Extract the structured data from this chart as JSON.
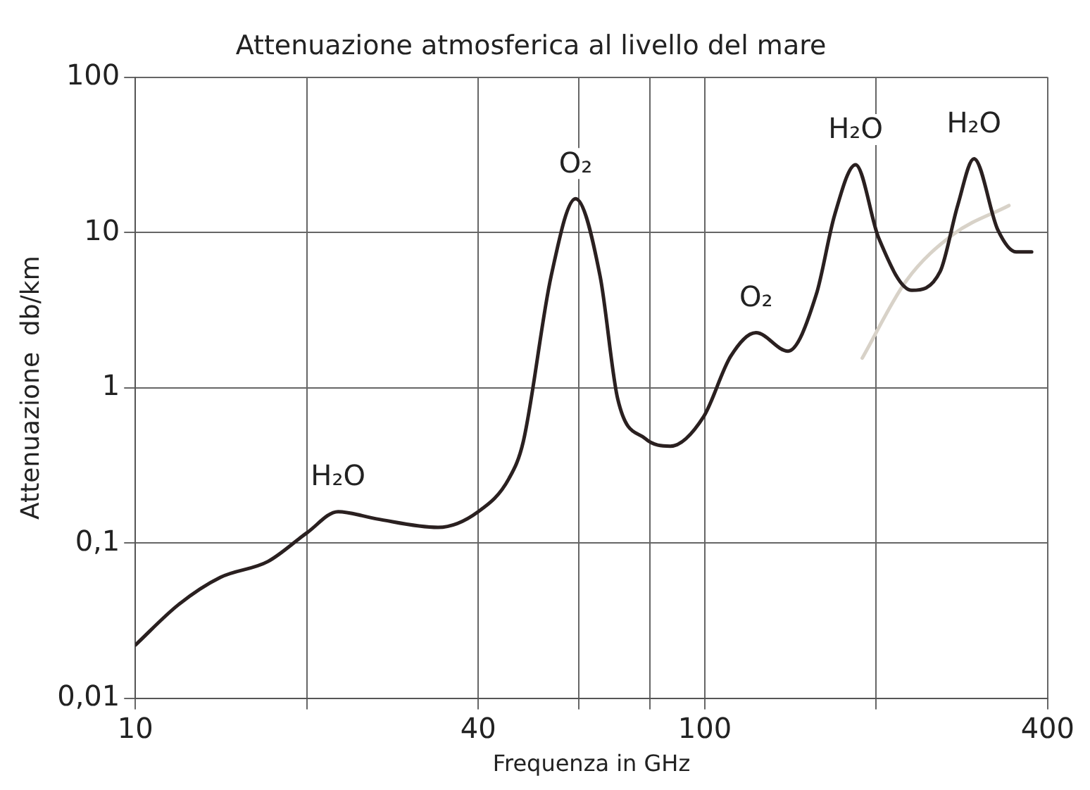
{
  "chart_data": {
    "type": "line",
    "title": "Attenuazione atmosferica al livello del mare",
    "xlabel": "Frequenza in GHz",
    "ylabel": "Attenuazione  db/km",
    "log": "xy",
    "grid": true,
    "legend": false,
    "marker": "none",
    "line_style": "solid",
    "xlim": [
      10,
      400
    ],
    "xticks": [
      10,
      {
        "value": 20,
        "label": null
      },
      40,
      {
        "value": 60,
        "label": null
      },
      {
        "value": 80,
        "label": null
      },
      100,
      {
        "value": 200,
        "label": null
      },
      400
    ],
    "ylim": [
      0.01,
      100
    ],
    "yticks": [
      {
        "value": 0.01,
        "label": "0,01"
      },
      {
        "value": 0.1,
        "label": "0,1"
      },
      1,
      10,
      100
    ],
    "series": [
      {
        "color": "#2a2020",
        "x": [
          10,
          11.9,
          14.1,
          17.1,
          20,
          22.7,
          26.5,
          34,
          40,
          45.3,
          48,
          53.7,
          59.3,
          65.5,
          70.3,
          78.6,
          87,
          99.5,
          111,
          123,
          140,
          157,
          169,
          184,
          202,
          231,
          259,
          278,
          297,
          327,
          352,
          375
        ],
        "values": [
          0.022,
          0.04,
          0.06,
          0.076,
          0.116,
          0.159,
          0.143,
          0.126,
          0.159,
          0.26,
          0.45,
          5.2,
          16.5,
          5.2,
          0.85,
          0.47,
          0.42,
          0.65,
          1.59,
          2.26,
          1.72,
          4.0,
          12.9,
          27.3,
          9.2,
          4.24,
          5.6,
          14.9,
          29.8,
          10.4,
          7.5,
          7.5
        ]
      },
      {
        "color": "#d8d2c8",
        "x": [
          189,
          226,
          274,
          342
        ],
        "values": [
          1.55,
          4.9,
          9.8,
          14.9
        ]
      }
    ],
    "annotations": [
      {
        "text": "H₂O",
        "x": 22.7,
        "y": 0.159
      },
      {
        "text": "O₂",
        "x": 59.3,
        "y": 16.5
      },
      {
        "text": "O₂",
        "x": 123,
        "y": 2.26
      },
      {
        "text": "H₂O",
        "x": 184,
        "y": 27.3
      },
      {
        "text": "H₂O",
        "x": 297,
        "y": 29.8
      }
    ]
  }
}
